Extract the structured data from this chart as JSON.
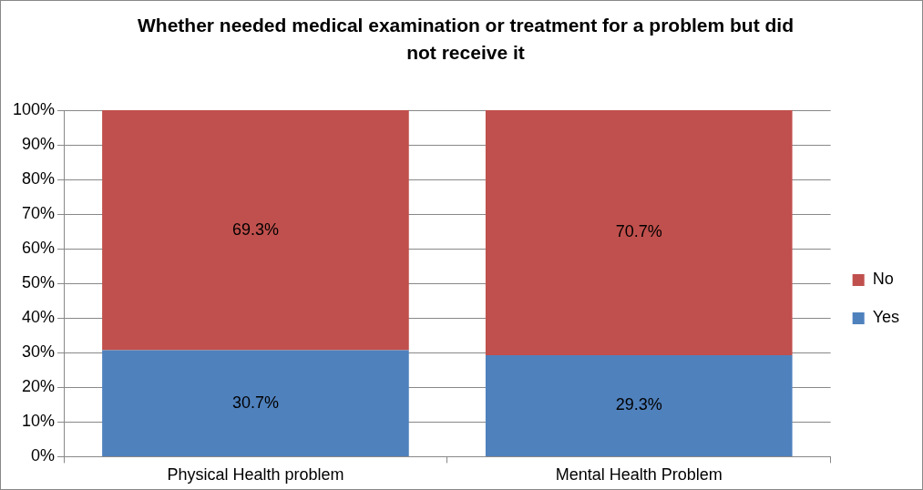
{
  "chart_data": {
    "type": "bar",
    "title": "Whether needed medical examination or treatment for a problem but did not receive it",
    "categories": [
      "Physical Health problem",
      "Mental Health Problem"
    ],
    "stacked": true,
    "series": [
      {
        "name": "Yes",
        "color": "#4f81bd",
        "values": [
          30.7,
          29.3
        ],
        "value_labels": [
          "30.7%",
          "29.3%"
        ]
      },
      {
        "name": "No",
        "color": "#c0504d",
        "values": [
          69.3,
          70.7
        ],
        "value_labels": [
          "69.3%",
          "70.7%"
        ]
      }
    ],
    "ylim": [
      0,
      100
    ],
    "yticks": [
      {
        "value": 0,
        "label": "0%"
      },
      {
        "value": 10,
        "label": "10%"
      },
      {
        "value": 20,
        "label": "20%"
      },
      {
        "value": 30,
        "label": "30%"
      },
      {
        "value": 40,
        "label": "40%"
      },
      {
        "value": 50,
        "label": "50%"
      },
      {
        "value": 60,
        "label": "60%"
      },
      {
        "value": 70,
        "label": "70%"
      },
      {
        "value": 80,
        "label": "80%"
      },
      {
        "value": 90,
        "label": "90%"
      },
      {
        "value": 100,
        "label": "100%"
      }
    ],
    "grid": "y",
    "legend": "right"
  }
}
